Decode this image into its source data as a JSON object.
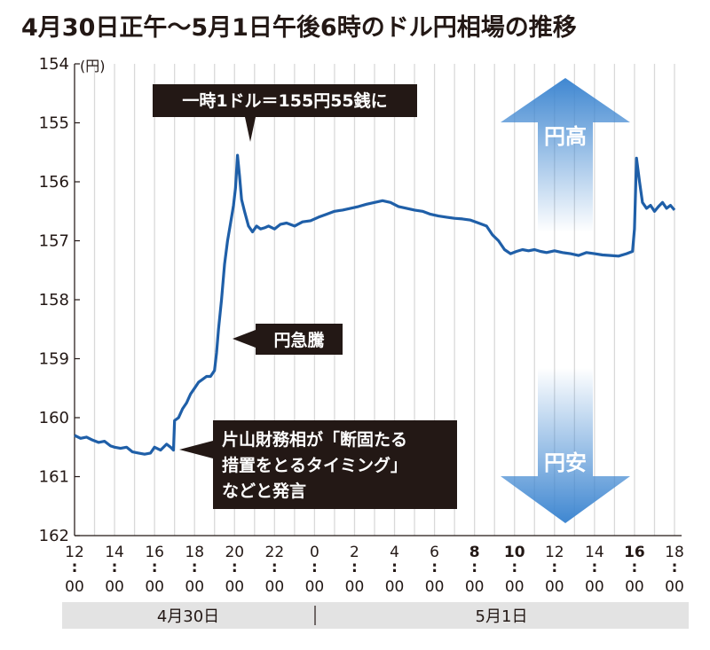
{
  "chart_data": {
    "type": "line",
    "title": "4月30日正午〜5月1日午後6時のドル円相場の推移",
    "unit": "(円)",
    "y_axis": {
      "min": 154,
      "max": 162,
      "inverted": true,
      "ticks": [
        "154",
        "155",
        "156",
        "157",
        "158",
        "159",
        "160",
        "161",
        "162"
      ]
    },
    "x_ticks": [
      {
        "hour": "12",
        "min": "00",
        "bold": false
      },
      {
        "hour": "14",
        "min": "00",
        "bold": false
      },
      {
        "hour": "16",
        "min": "00",
        "bold": false
      },
      {
        "hour": "18",
        "min": "00",
        "bold": false
      },
      {
        "hour": "20",
        "min": "00",
        "bold": false
      },
      {
        "hour": "22",
        "min": "00",
        "bold": false
      },
      {
        "hour": "0",
        "min": "00",
        "bold": false
      },
      {
        "hour": "2",
        "min": "00",
        "bold": false
      },
      {
        "hour": "4",
        "min": "00",
        "bold": false
      },
      {
        "hour": "6",
        "min": "00",
        "bold": false
      },
      {
        "hour": "8",
        "min": "00",
        "bold": true
      },
      {
        "hour": "10",
        "min": "00",
        "bold": true
      },
      {
        "hour": "12",
        "min": "00",
        "bold": false
      },
      {
        "hour": "14",
        "min": "00",
        "bold": false
      },
      {
        "hour": "16",
        "min": "00",
        "bold": true
      },
      {
        "hour": "18",
        "min": "00",
        "bold": false
      }
    ],
    "date_labels": [
      "4月30日",
      "5月1日"
    ],
    "series": [
      {
        "color": "#1f5fa8",
        "points": [
          [
            0,
            160.3
          ],
          [
            0.3,
            160.35
          ],
          [
            0.6,
            160.33
          ],
          [
            0.9,
            160.38
          ],
          [
            1.2,
            160.42
          ],
          [
            1.5,
            160.4
          ],
          [
            1.8,
            160.48
          ],
          [
            2.0,
            160.5
          ],
          [
            2.3,
            160.52
          ],
          [
            2.6,
            160.5
          ],
          [
            2.9,
            160.58
          ],
          [
            3.2,
            160.6
          ],
          [
            3.5,
            160.62
          ],
          [
            3.8,
            160.6
          ],
          [
            4.0,
            160.5
          ],
          [
            4.3,
            160.55
          ],
          [
            4.6,
            160.45
          ],
          [
            4.8,
            160.5
          ],
          [
            4.95,
            160.55
          ],
          [
            5.0,
            160.05
          ],
          [
            5.2,
            160.0
          ],
          [
            5.4,
            159.85
          ],
          [
            5.6,
            159.75
          ],
          [
            5.8,
            159.6
          ],
          [
            6.0,
            159.5
          ],
          [
            6.2,
            159.4
          ],
          [
            6.4,
            159.35
          ],
          [
            6.6,
            159.3
          ],
          [
            6.8,
            159.3
          ],
          [
            7.0,
            159.2
          ],
          [
            7.1,
            158.9
          ],
          [
            7.2,
            158.5
          ],
          [
            7.35,
            158.0
          ],
          [
            7.5,
            157.4
          ],
          [
            7.65,
            157.0
          ],
          [
            7.8,
            156.7
          ],
          [
            7.95,
            156.4
          ],
          [
            8.05,
            156.1
          ],
          [
            8.15,
            155.55
          ],
          [
            8.25,
            155.9
          ],
          [
            8.35,
            156.3
          ],
          [
            8.5,
            156.5
          ],
          [
            8.7,
            156.75
          ],
          [
            8.9,
            156.85
          ],
          [
            9.1,
            156.75
          ],
          [
            9.3,
            156.8
          ],
          [
            9.5,
            156.78
          ],
          [
            9.7,
            156.75
          ],
          [
            10.0,
            156.8
          ],
          [
            10.3,
            156.72
          ],
          [
            10.6,
            156.7
          ],
          [
            11.0,
            156.75
          ],
          [
            11.4,
            156.68
          ],
          [
            11.8,
            156.66
          ],
          [
            12.2,
            156.6
          ],
          [
            12.6,
            156.55
          ],
          [
            13.0,
            156.5
          ],
          [
            13.4,
            156.48
          ],
          [
            13.8,
            156.45
          ],
          [
            14.2,
            156.42
          ],
          [
            14.6,
            156.38
          ],
          [
            15.0,
            156.35
          ],
          [
            15.4,
            156.32
          ],
          [
            15.8,
            156.35
          ],
          [
            16.2,
            156.42
          ],
          [
            16.6,
            156.45
          ],
          [
            17.0,
            156.48
          ],
          [
            17.4,
            156.5
          ],
          [
            17.8,
            156.55
          ],
          [
            18.2,
            156.58
          ],
          [
            18.6,
            156.6
          ],
          [
            19.0,
            156.62
          ],
          [
            19.4,
            156.63
          ],
          [
            19.8,
            156.65
          ],
          [
            20.2,
            156.7
          ],
          [
            20.6,
            156.75
          ],
          [
            20.9,
            156.9
          ],
          [
            21.2,
            157.0
          ],
          [
            21.5,
            157.15
          ],
          [
            21.8,
            157.22
          ],
          [
            22.1,
            157.18
          ],
          [
            22.4,
            157.15
          ],
          [
            22.7,
            157.17
          ],
          [
            23.0,
            157.15
          ],
          [
            23.3,
            157.18
          ],
          [
            23.6,
            157.2
          ],
          [
            24.0,
            157.17
          ],
          [
            24.4,
            157.2
          ],
          [
            24.8,
            157.22
          ],
          [
            25.2,
            157.25
          ],
          [
            25.6,
            157.2
          ],
          [
            26.0,
            157.22
          ],
          [
            26.4,
            157.24
          ],
          [
            26.8,
            157.25
          ],
          [
            27.2,
            157.26
          ],
          [
            27.6,
            157.22
          ],
          [
            27.9,
            157.18
          ],
          [
            28.0,
            156.8
          ],
          [
            28.1,
            155.6
          ],
          [
            28.25,
            156.0
          ],
          [
            28.4,
            156.35
          ],
          [
            28.6,
            156.45
          ],
          [
            28.8,
            156.4
          ],
          [
            29.0,
            156.5
          ],
          [
            29.2,
            156.42
          ],
          [
            29.4,
            156.35
          ],
          [
            29.6,
            156.45
          ],
          [
            29.8,
            156.4
          ],
          [
            30.0,
            156.48
          ]
        ]
      }
    ],
    "annotations": {
      "peak": "一時1ドル＝155円55銭に",
      "surge": "円急騰",
      "statement_lines": [
        "片山財務相が「断固たる",
        "措置をとるタイミング」",
        "などと発言"
      ]
    },
    "arrows": {
      "up": "円高",
      "down": "円安"
    },
    "grid": true,
    "gridline_color": "#d9d9d9",
    "line_color": "#1f5fa8",
    "annotation_bg": "#231815",
    "arrow_color": "#7fb2e0"
  }
}
